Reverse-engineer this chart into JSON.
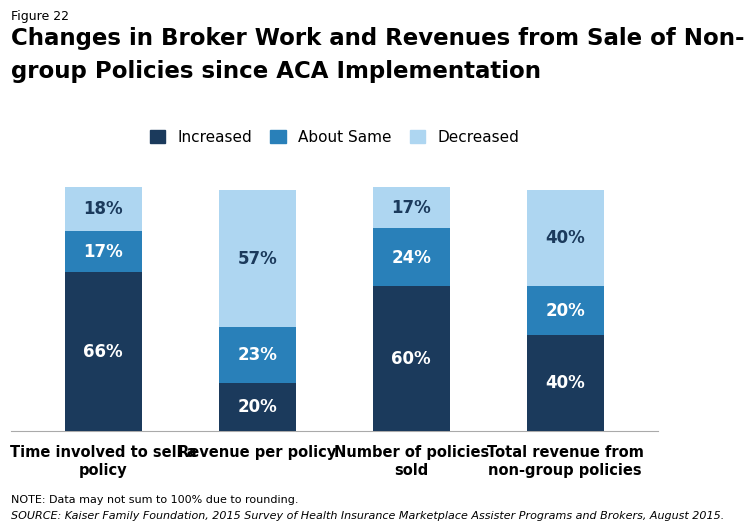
{
  "categories": [
    "Time involved to sell a\npolicy",
    "Revenue per policy",
    "Number of policies\nsold",
    "Total revenue from\nnon-group policies"
  ],
  "increased": [
    66,
    20,
    60,
    40
  ],
  "about_same": [
    17,
    23,
    24,
    20
  ],
  "decreased": [
    18,
    57,
    17,
    40
  ],
  "color_increased": "#1b3a5c",
  "color_about_same": "#2980b9",
  "color_decreased": "#aed6f1",
  "title_figure": "Figure 22",
  "title_main_line1": "Changes in Broker Work and Revenues from Sale of Non-",
  "title_main_line2": "group Policies since ACA Implementation",
  "legend_labels": [
    "Increased",
    "About Same",
    "Decreased"
  ],
  "note": "NOTE: Data may not sum to 100% due to rounding.",
  "source": "SOURCE: Kaiser Family Foundation, 2015 Survey of Health Insurance Marketplace Assister Programs and Brokers, August 2015.",
  "ylim": [
    0,
    105
  ],
  "bar_width": 0.5,
  "background_color": "#ffffff",
  "label_color_inc": "#ffffff",
  "label_color_same": "#ffffff",
  "label_color_dec": "#1b3a5c"
}
